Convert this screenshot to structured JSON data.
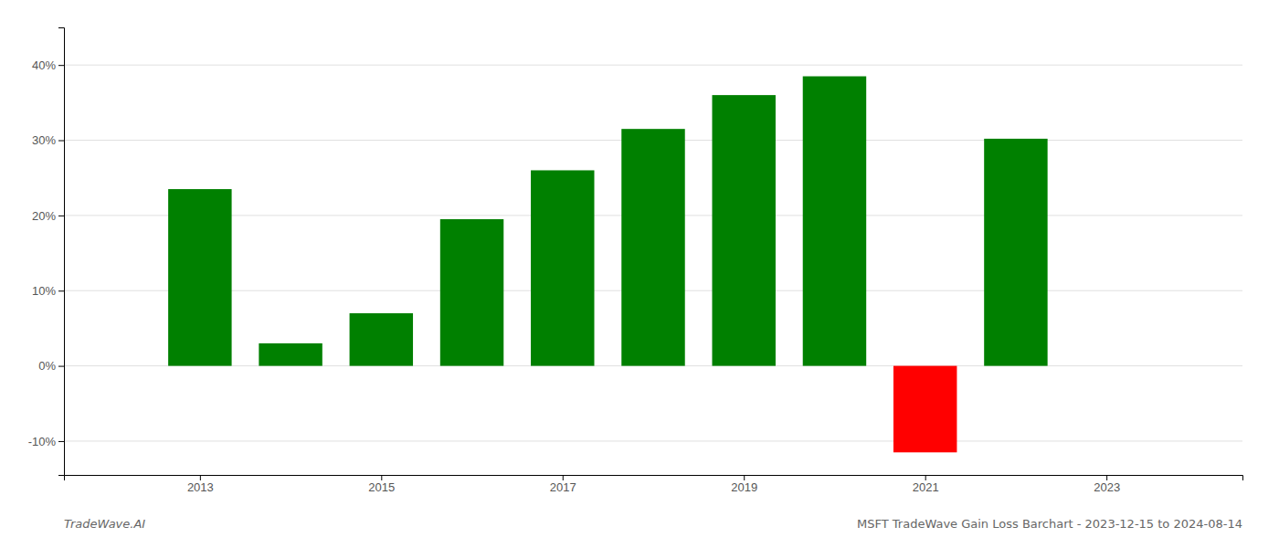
{
  "chart_data": {
    "type": "bar",
    "title": "MSFT TradeWave Gain Loss Barchart - 2023-12-15 to 2024-08-14",
    "annotations": [
      "TradeWave.AI"
    ],
    "x": [
      2013,
      2014,
      2015,
      2016,
      2017,
      2018,
      2019,
      2020,
      2021,
      2022
    ],
    "values": [
      0.235,
      0.03,
      0.07,
      0.195,
      0.26,
      0.315,
      0.36,
      0.385,
      -0.115,
      0.302
    ],
    "colors": [
      "#008000",
      "#008000",
      "#008000",
      "#008000",
      "#008000",
      "#008000",
      "#008000",
      "#008000",
      "#ff0000",
      "#008000"
    ],
    "xlim": [
      2011.5,
      2024.5
    ],
    "xticks": [
      2013,
      2015,
      2017,
      2019,
      2021,
      2023
    ],
    "ylim": [
      -0.145,
      0.45
    ],
    "yticks": [
      {
        "value": -0.1,
        "label": "-10%"
      },
      {
        "value": 0.0,
        "label": "0%"
      },
      {
        "value": 0.1,
        "label": "10%"
      },
      {
        "value": 0.2,
        "label": "20%"
      },
      {
        "value": 0.3,
        "label": "30%"
      },
      {
        "value": 0.4,
        "label": "40%"
      }
    ],
    "grid": true
  }
}
